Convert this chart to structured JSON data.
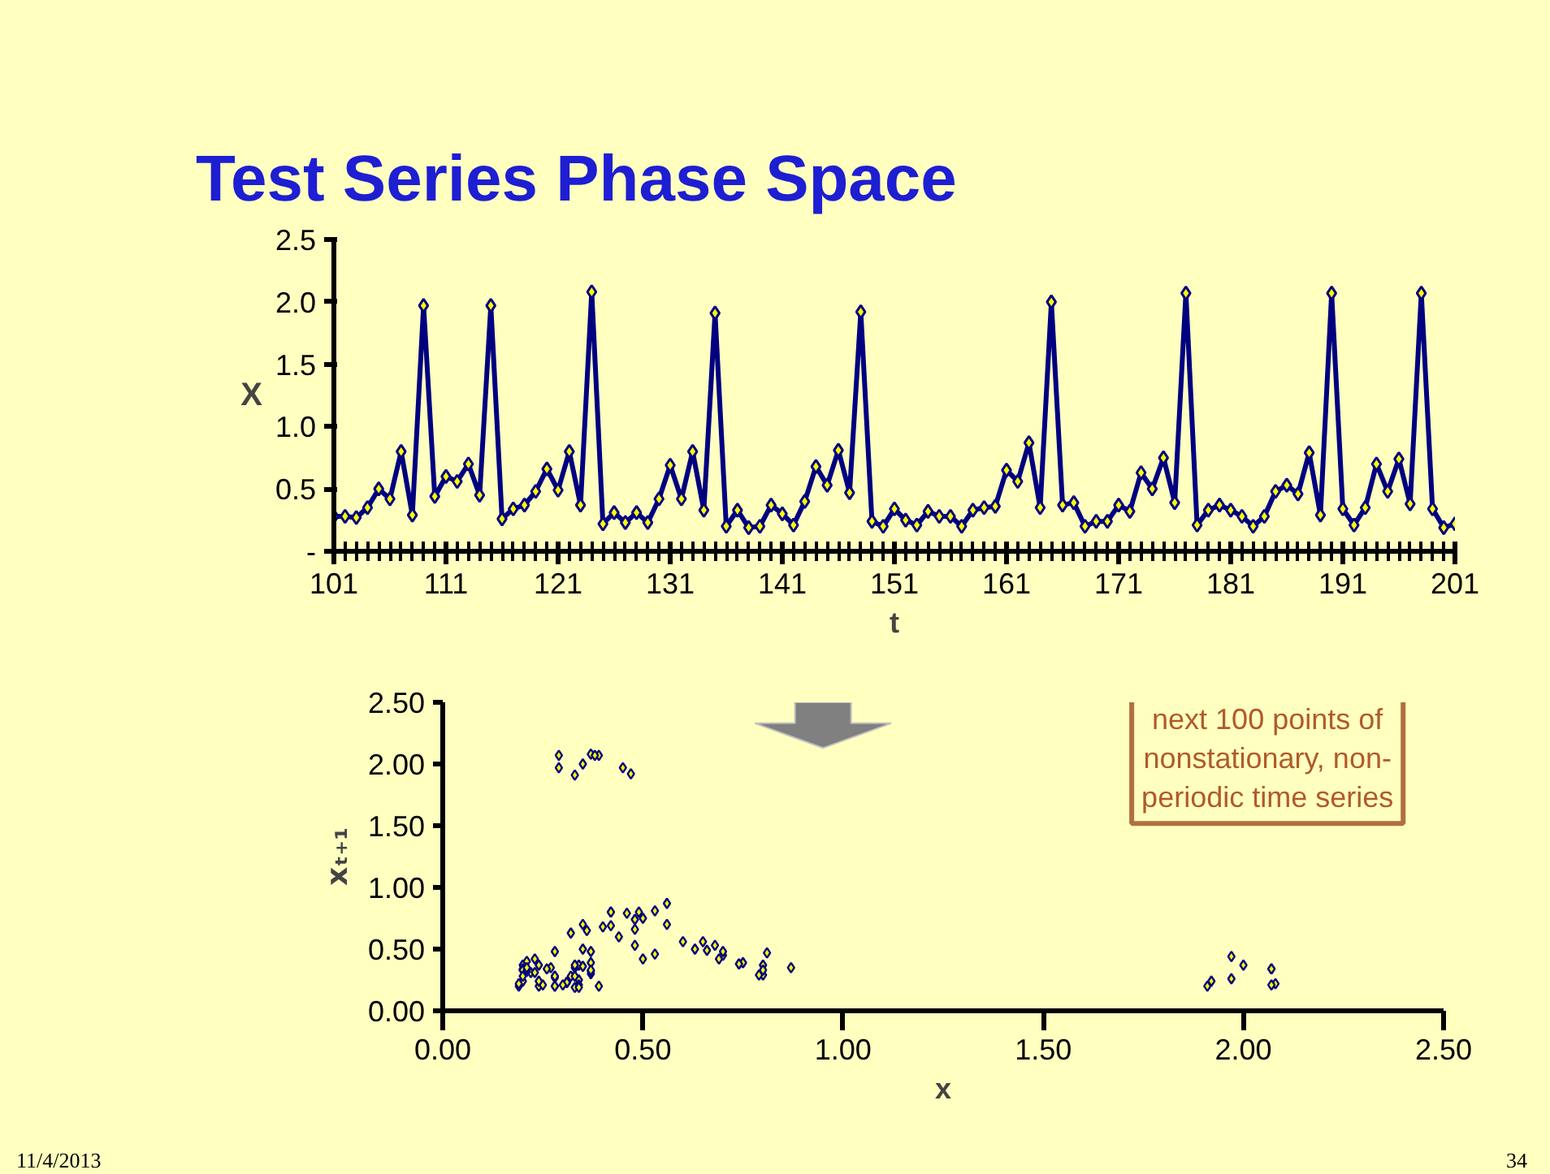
{
  "chart_data": [
    {
      "type": "line",
      "title": "Test Series Phase Space",
      "xlabel": "t",
      "ylabel": "X",
      "marker": "diamond",
      "x": [
        101,
        102,
        103,
        104,
        105,
        106,
        107,
        108,
        109,
        110,
        111,
        112,
        113,
        114,
        115,
        116,
        117,
        118,
        119,
        120,
        121,
        122,
        123,
        124,
        125,
        126,
        127,
        128,
        129,
        130,
        131,
        132,
        133,
        134,
        135,
        136,
        137,
        138,
        139,
        140,
        141,
        142,
        143,
        144,
        145,
        146,
        147,
        148,
        149,
        150,
        151,
        152,
        153,
        154,
        155,
        156,
        157,
        158,
        159,
        160,
        161,
        162,
        163,
        164,
        165,
        166,
        167,
        168,
        169,
        170,
        171,
        172,
        173,
        174,
        175,
        176,
        177,
        178,
        179,
        180,
        181,
        182,
        183,
        184,
        185,
        186,
        187,
        188,
        189,
        190,
        191,
        192,
        193,
        194,
        195,
        196,
        197,
        198,
        199,
        200,
        201
      ],
      "series": [
        {
          "color": "#000080",
          "values": [
            0.28,
            0.28,
            0.27,
            0.35,
            0.5,
            0.42,
            0.8,
            0.29,
            1.97,
            0.44,
            0.6,
            0.56,
            0.7,
            0.45,
            1.97,
            0.26,
            0.34,
            0.37,
            0.48,
            0.66,
            0.49,
            0.8,
            0.37,
            2.08,
            0.22,
            0.31,
            0.23,
            0.31,
            0.23,
            0.42,
            0.69,
            0.42,
            0.8,
            0.33,
            1.91,
            0.2,
            0.33,
            0.19,
            0.2,
            0.37,
            0.3,
            0.21,
            0.4,
            0.68,
            0.53,
            0.81,
            0.47,
            1.92,
            0.24,
            0.2,
            0.34,
            0.25,
            0.21,
            0.32,
            0.28,
            0.28,
            0.2,
            0.33,
            0.35,
            0.36,
            0.65,
            0.56,
            0.87,
            0.35,
            2.0,
            0.37,
            0.39,
            0.2,
            0.24,
            0.24,
            0.37,
            0.32,
            0.63,
            0.5,
            0.75,
            0.39,
            2.07,
            0.21,
            0.33,
            0.37,
            0.33,
            0.28,
            0.2,
            0.28,
            0.48,
            0.53,
            0.46,
            0.79,
            0.29,
            2.07,
            0.34,
            0.21,
            0.35,
            0.7,
            0.48,
            0.74,
            0.38,
            2.07,
            0.34,
            0.19,
            0.22
          ]
        }
      ],
      "xlim": [
        101,
        201
      ],
      "xticks": [
        101,
        111,
        121,
        131,
        141,
        151,
        161,
        171,
        181,
        191,
        201
      ],
      "ylim": [
        0,
        2.5
      ],
      "yticks": [
        {
          "value": 0,
          "label": "-"
        },
        {
          "value": 0.5,
          "label": "0.5"
        },
        {
          "value": 1,
          "label": "1.0"
        },
        {
          "value": 1.5,
          "label": "1.5"
        },
        {
          "value": 2,
          "label": "2.0"
        },
        {
          "value": 2.5,
          "label": "2.5"
        }
      ]
    },
    {
      "type": "scatter",
      "xlabel": "x",
      "ylabel": "xₜ₊₁",
      "marker": "diamond",
      "color": "#ffff00",
      "x": [
        0.28,
        0.28,
        0.27,
        0.35,
        0.5,
        0.42,
        0.8,
        0.29,
        1.97,
        0.44,
        0.6,
        0.56,
        0.7,
        0.45,
        1.97,
        0.26,
        0.34,
        0.37,
        0.48,
        0.66,
        0.49,
        0.8,
        0.37,
        2.08,
        0.22,
        0.31,
        0.23,
        0.31,
        0.23,
        0.42,
        0.69,
        0.42,
        0.8,
        0.33,
        1.91,
        0.2,
        0.33,
        0.19,
        0.2,
        0.37,
        0.3,
        0.21,
        0.4,
        0.68,
        0.53,
        0.81,
        0.47,
        1.92,
        0.24,
        0.2,
        0.34,
        0.25,
        0.21,
        0.32,
        0.28,
        0.28,
        0.2,
        0.33,
        0.35,
        0.36,
        0.65,
        0.56,
        0.87,
        0.35,
        2.0,
        0.37,
        0.39,
        0.2,
        0.24,
        0.24,
        0.37,
        0.32,
        0.63,
        0.5,
        0.75,
        0.39,
        2.07,
        0.21,
        0.33,
        0.37,
        0.33,
        0.28,
        0.2,
        0.28,
        0.48,
        0.53,
        0.46,
        0.79,
        0.29,
        2.07,
        0.34,
        0.21,
        0.35,
        0.7,
        0.48,
        0.74,
        0.38,
        2.07,
        0.34,
        0.19
      ],
      "values": [
        0.28,
        0.27,
        0.35,
        0.5,
        0.42,
        0.8,
        0.29,
        1.97,
        0.44,
        0.6,
        0.56,
        0.7,
        0.45,
        1.97,
        0.26,
        0.34,
        0.37,
        0.48,
        0.66,
        0.49,
        0.8,
        0.37,
        2.08,
        0.22,
        0.31,
        0.23,
        0.31,
        0.23,
        0.42,
        0.69,
        0.42,
        0.8,
        0.33,
        1.91,
        0.2,
        0.33,
        0.19,
        0.2,
        0.37,
        0.3,
        0.21,
        0.4,
        0.68,
        0.53,
        0.81,
        0.47,
        1.92,
        0.24,
        0.2,
        0.34,
        0.25,
        0.21,
        0.32,
        0.28,
        0.28,
        0.2,
        0.33,
        0.35,
        0.36,
        0.65,
        0.56,
        0.87,
        0.35,
        2.0,
        0.37,
        0.39,
        0.2,
        0.24,
        0.24,
        0.37,
        0.32,
        0.63,
        0.5,
        0.75,
        0.39,
        2.07,
        0.21,
        0.33,
        0.37,
        0.33,
        0.28,
        0.2,
        0.28,
        0.48,
        0.53,
        0.46,
        0.79,
        0.29,
        2.07,
        0.34,
        0.21,
        0.35,
        0.7,
        0.48,
        0.74,
        0.38,
        2.07,
        0.34,
        0.19,
        0.22
      ],
      "xlim": [
        0,
        2.5
      ],
      "xticks": [
        {
          "value": 0,
          "label": "0.00"
        },
        {
          "value": 0.5,
          "label": "0.50"
        },
        {
          "value": 1,
          "label": "1.00"
        },
        {
          "value": 1.5,
          "label": "1.50"
        },
        {
          "value": 2,
          "label": "2.00"
        },
        {
          "value": 2.5,
          "label": "2.50"
        }
      ],
      "ylim": [
        0,
        2.5
      ],
      "yticks": [
        {
          "value": 0,
          "label": "0.00"
        },
        {
          "value": 0.5,
          "label": "0.50"
        },
        {
          "value": 1,
          "label": "1.00"
        },
        {
          "value": 1.5,
          "label": "1.50"
        },
        {
          "value": 2,
          "label": "2.00"
        },
        {
          "value": 2.5,
          "label": "2.50"
        }
      ],
      "annotations": [
        "next 100 points of nonstationary, non-periodic time series",
        "11/4/2013",
        "34"
      ]
    }
  ]
}
